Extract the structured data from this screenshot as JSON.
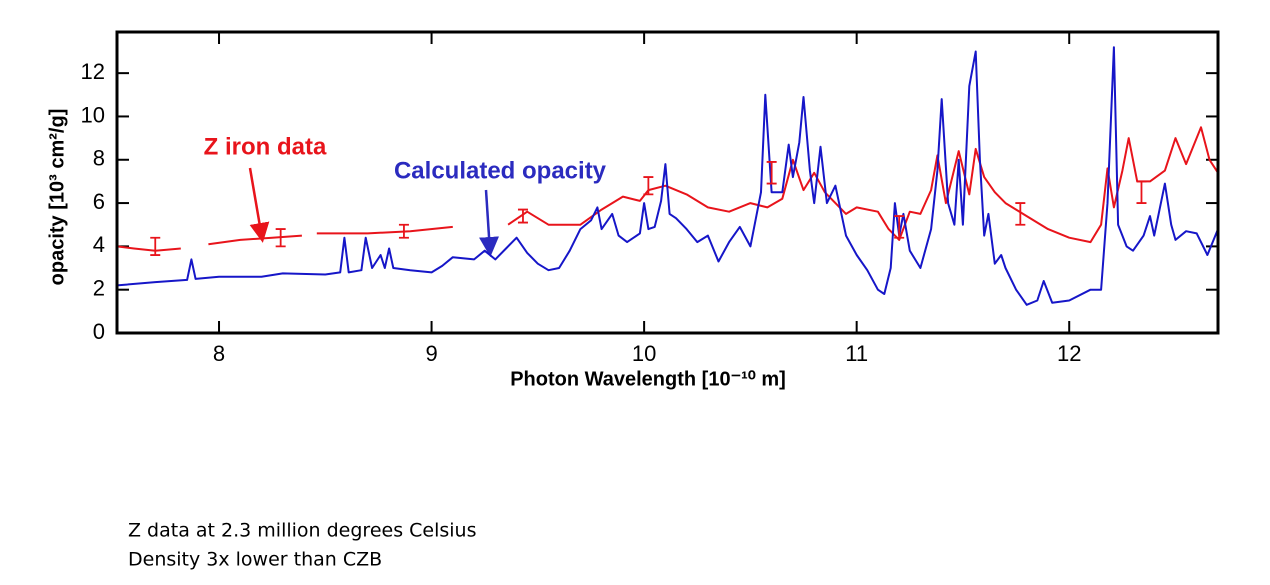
{
  "chart_data": {
    "type": "line",
    "xlabel": "Photon Wavelength [10⁻¹⁰ m]",
    "ylabel": "opacity [10³ cm²/g]",
    "xlim": [
      7.52,
      12.7
    ],
    "ylim": [
      0,
      13.9
    ],
    "xticks": [
      8,
      9,
      10,
      11,
      12
    ],
    "yticks": [
      0,
      2,
      4,
      6,
      8,
      10,
      12
    ],
    "series": [
      {
        "name": "Z iron data",
        "color": "#e8141b",
        "x": [
          7.52,
          7.6,
          7.7,
          7.82,
          null,
          7.95,
          8.1,
          8.25,
          8.39,
          null,
          8.46,
          8.7,
          8.9,
          9.1,
          null,
          9.36,
          9.45,
          9.55,
          9.7,
          9.8,
          9.9,
          9.98,
          10.02,
          10.1,
          10.2,
          10.3,
          10.4,
          10.5,
          10.58,
          10.65,
          10.7,
          10.75,
          10.8,
          10.85,
          10.9,
          10.95,
          11.0,
          11.1,
          11.15,
          11.2,
          11.25,
          11.3,
          11.35,
          11.38,
          11.42,
          11.48,
          11.53,
          11.56,
          11.6,
          11.65,
          11.7,
          11.8,
          11.9,
          12.0,
          12.1,
          12.15,
          12.18,
          12.21,
          12.25,
          12.28,
          12.32,
          12.38,
          12.45,
          12.5,
          12.55,
          12.62,
          12.66,
          12.7
        ],
        "values": [
          4.0,
          3.9,
          3.8,
          3.9,
          null,
          4.1,
          4.3,
          4.4,
          4.5,
          null,
          4.6,
          4.6,
          4.7,
          4.9,
          null,
          5.0,
          5.6,
          5.0,
          5.0,
          5.7,
          6.3,
          6.1,
          6.6,
          6.8,
          6.4,
          5.8,
          5.6,
          6.0,
          5.8,
          6.2,
          8.0,
          6.6,
          7.4,
          6.5,
          6.0,
          5.5,
          5.8,
          5.6,
          4.8,
          4.3,
          5.6,
          5.5,
          6.6,
          8.2,
          6.0,
          8.4,
          6.4,
          8.5,
          7.2,
          6.5,
          6.0,
          5.4,
          4.8,
          4.4,
          4.2,
          5.0,
          7.6,
          5.8,
          7.5,
          9.0,
          7.0,
          7.0,
          7.5,
          9.0,
          7.8,
          9.5,
          8.0,
          7.4
        ]
      },
      {
        "name": "Calculated opacity",
        "color": "#1616c8",
        "x": [
          7.52,
          7.7,
          7.85,
          7.87,
          7.89,
          8.0,
          8.2,
          8.3,
          8.5,
          8.57,
          8.59,
          8.61,
          8.67,
          8.69,
          8.72,
          8.76,
          8.78,
          8.8,
          8.82,
          8.9,
          9.0,
          9.05,
          9.1,
          9.2,
          9.25,
          9.3,
          9.35,
          9.4,
          9.45,
          9.5,
          9.55,
          9.6,
          9.65,
          9.7,
          9.75,
          9.78,
          9.8,
          9.85,
          9.88,
          9.92,
          9.98,
          10.0,
          10.02,
          10.05,
          10.08,
          10.1,
          10.12,
          10.15,
          10.2,
          10.25,
          10.3,
          10.35,
          10.4,
          10.45,
          10.5,
          10.55,
          10.57,
          10.6,
          10.65,
          10.68,
          10.7,
          10.73,
          10.75,
          10.78,
          10.8,
          10.83,
          10.86,
          10.9,
          10.95,
          11.0,
          11.05,
          11.1,
          11.13,
          11.16,
          11.18,
          11.2,
          11.22,
          11.25,
          11.3,
          11.35,
          11.38,
          11.4,
          11.43,
          11.46,
          11.48,
          11.5,
          11.53,
          11.56,
          11.58,
          11.6,
          11.62,
          11.65,
          11.68,
          11.7,
          11.75,
          11.8,
          11.85,
          11.88,
          11.92,
          12.0,
          12.1,
          12.15,
          12.18,
          12.21,
          12.23,
          12.27,
          12.3,
          12.35,
          12.38,
          12.4,
          12.45,
          12.48,
          12.5,
          12.55,
          12.6,
          12.65,
          12.7
        ],
        "values": [
          2.2,
          2.35,
          2.45,
          3.4,
          2.5,
          2.6,
          2.6,
          2.75,
          2.7,
          2.8,
          4.4,
          2.8,
          2.9,
          4.4,
          3.0,
          3.6,
          3.0,
          3.9,
          3.0,
          2.9,
          2.8,
          3.1,
          3.5,
          3.4,
          3.8,
          3.4,
          3.9,
          4.4,
          3.7,
          3.2,
          2.9,
          3.0,
          3.8,
          4.8,
          5.2,
          5.8,
          4.8,
          5.5,
          4.5,
          4.2,
          4.6,
          6.0,
          4.8,
          4.9,
          6.1,
          7.8,
          5.5,
          5.3,
          4.8,
          4.2,
          4.5,
          3.3,
          4.2,
          4.9,
          4.0,
          6.5,
          11.0,
          6.5,
          6.5,
          8.7,
          7.2,
          8.8,
          10.9,
          7.5,
          6.0,
          8.6,
          6.0,
          6.8,
          4.5,
          3.6,
          2.9,
          2.0,
          1.8,
          3.0,
          6.0,
          4.5,
          5.5,
          3.8,
          3.0,
          4.8,
          7.5,
          10.8,
          6.0,
          5.0,
          8.0,
          5.0,
          11.4,
          13.0,
          8.0,
          4.5,
          5.5,
          3.2,
          3.6,
          3.0,
          2.0,
          1.3,
          1.5,
          2.4,
          1.4,
          1.5,
          2.0,
          2.0,
          6.0,
          13.2,
          5.0,
          4.0,
          3.8,
          4.5,
          5.4,
          4.5,
          6.9,
          5.0,
          4.3,
          4.7,
          4.6,
          3.6,
          4.8
        ]
      }
    ],
    "error_bars": {
      "color": "#e8141b",
      "x": [
        7.7,
        8.29,
        8.87,
        9.43,
        10.02,
        10.6,
        11.2,
        11.77,
        12.34
      ],
      "values": [
        4.0,
        4.4,
        4.7,
        5.4,
        6.8,
        7.4,
        4.9,
        5.5,
        6.5
      ],
      "errors": [
        0.4,
        0.4,
        0.3,
        0.3,
        0.4,
        0.5,
        0.5,
        0.5,
        0.5
      ]
    },
    "footnotes": [
      "Z data at 2.3 million degrees Celsius",
      "Density 3x lower than CZB"
    ]
  }
}
